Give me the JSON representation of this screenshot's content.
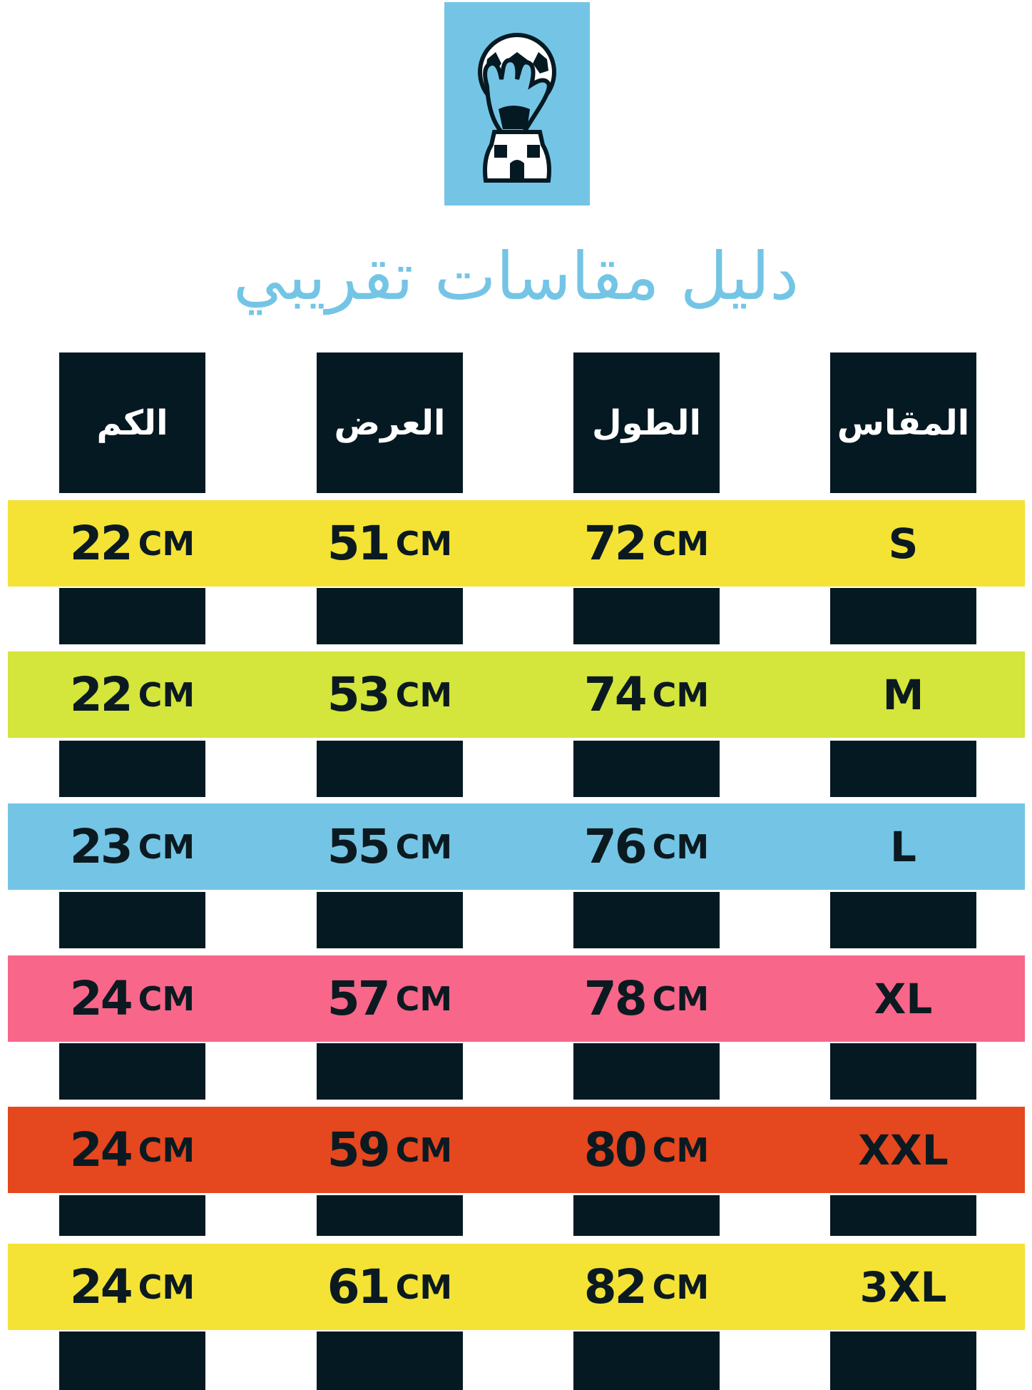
{
  "title": "دليل مقاسات تقريبي",
  "logo": {
    "icon": "goalkeeper-glove-ball-trophy-icon",
    "background": "#74c5e5"
  },
  "headers": {
    "size": "المقاس",
    "length": "الطول",
    "width": "العرض",
    "sleeve": "الكم"
  },
  "unit": "CM",
  "rows": [
    {
      "size": "S",
      "length": "72",
      "width": "51",
      "sleeve": "22",
      "color": "#f4e235"
    },
    {
      "size": "M",
      "length": "74",
      "width": "53",
      "sleeve": "22",
      "color": "#d4e53b"
    },
    {
      "size": "L",
      "length": "76",
      "width": "55",
      "sleeve": "23",
      "color": "#74c5e5"
    },
    {
      "size": "XL",
      "length": "78",
      "width": "57",
      "sleeve": "24",
      "color": "#f8668a"
    },
    {
      "size": "XXL",
      "length": "80",
      "width": "59",
      "sleeve": "24",
      "color": "#e5471f"
    },
    {
      "size": "3XL",
      "length": "82",
      "width": "61",
      "sleeve": "24",
      "color": "#f4e235"
    }
  ],
  "colors": {
    "column": "#051922",
    "text": "#0b1a20",
    "title": "#74c5e5"
  }
}
